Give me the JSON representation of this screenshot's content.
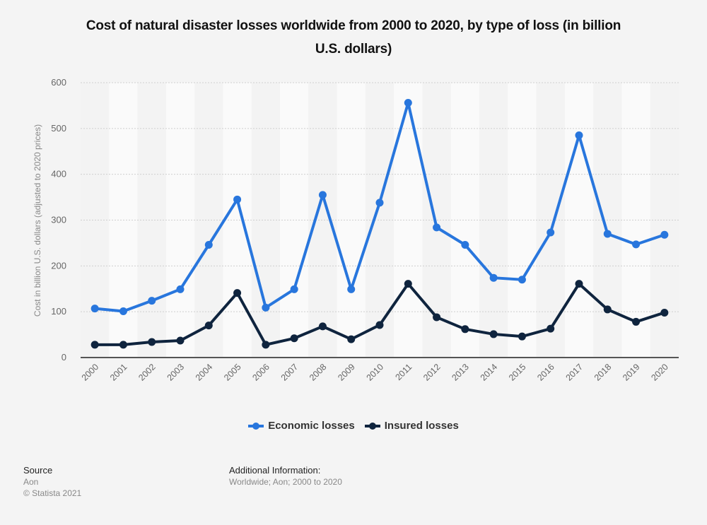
{
  "chart_data": {
    "type": "line",
    "title": "Cost of natural disaster losses worldwide from 2000 to 2020, by type of loss (in billion U.S. dollars)",
    "title_lines": [
      "Cost of natural disaster losses worldwide from 2000 to 2020, by type of loss (in billion",
      "U.S. dollars)"
    ],
    "xlabel": "",
    "ylabel": "Cost in billion U.S. dollars (adjusted to 2020 prices)",
    "ylim": [
      0,
      600
    ],
    "yticks": [
      0,
      100,
      200,
      300,
      400,
      500,
      600
    ],
    "grid": true,
    "legend_position": "bottom",
    "categories": [
      "2000",
      "2001",
      "2002",
      "2003",
      "2004",
      "2005",
      "2006",
      "2007",
      "2008",
      "2009",
      "2010",
      "2011",
      "2012",
      "2013",
      "2014",
      "2015",
      "2016",
      "2017",
      "2018",
      "2019",
      "2020"
    ],
    "series": [
      {
        "name": "Economic losses",
        "color": "#2876dd",
        "values": [
          107,
          101,
          124,
          149,
          246,
          345,
          109,
          149,
          355,
          149,
          338,
          556,
          284,
          246,
          174,
          170,
          273,
          485,
          270,
          247,
          268
        ]
      },
      {
        "name": "Insured losses",
        "color": "#0f243e",
        "values": [
          28,
          28,
          34,
          37,
          70,
          141,
          28,
          42,
          68,
          40,
          71,
          161,
          88,
          62,
          51,
          46,
          63,
          161,
          105,
          78,
          98
        ]
      }
    ]
  },
  "footer": {
    "source_heading": "Source",
    "source_name": "Aon",
    "copyright": "© Statista 2021",
    "additional_heading": "Additional Information:",
    "additional_text": "Worldwide; Aon; 2000 to 2020"
  }
}
